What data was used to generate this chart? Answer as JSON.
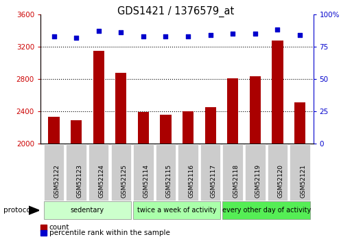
{
  "title": "GDS1421 / 1376579_at",
  "samples": [
    "GSM52122",
    "GSM52123",
    "GSM52124",
    "GSM52125",
    "GSM52114",
    "GSM52115",
    "GSM52116",
    "GSM52117",
    "GSM52118",
    "GSM52119",
    "GSM52120",
    "GSM52121"
  ],
  "counts": [
    2330,
    2290,
    3150,
    2870,
    2390,
    2355,
    2395,
    2450,
    2810,
    2835,
    3270,
    2510
  ],
  "percentile_ranks": [
    83,
    82,
    87,
    86,
    83,
    83,
    83,
    84,
    85,
    85,
    88,
    84
  ],
  "groups": [
    {
      "label": "sedentary",
      "start": 0,
      "end": 4,
      "color": "#ccffcc"
    },
    {
      "label": "twice a week of activity",
      "start": 4,
      "end": 8,
      "color": "#aaffaa"
    },
    {
      "label": "every other day of activity",
      "start": 8,
      "end": 12,
      "color": "#55ee55"
    }
  ],
  "bar_color": "#aa0000",
  "dot_color": "#0000cc",
  "ylim_left": [
    2000,
    3600
  ],
  "ylim_right": [
    0,
    100
  ],
  "yticks_left": [
    2000,
    2400,
    2800,
    3200,
    3600
  ],
  "yticks_right": [
    0,
    25,
    50,
    75,
    100
  ],
  "grid_values": [
    2400,
    2800,
    3200
  ],
  "bar_width": 0.5,
  "tick_label_color_left": "#cc0000",
  "tick_label_color_right": "#0000cc",
  "protocol_label": "protocol",
  "legend_count_label": "count",
  "legend_pct_label": "percentile rank within the sample",
  "background_color": "#ffffff",
  "plot_bg_color": "#ffffff",
  "cell_bg_color": "#cccccc",
  "group_border_color": "#888888",
  "title_fontsize": 10.5
}
